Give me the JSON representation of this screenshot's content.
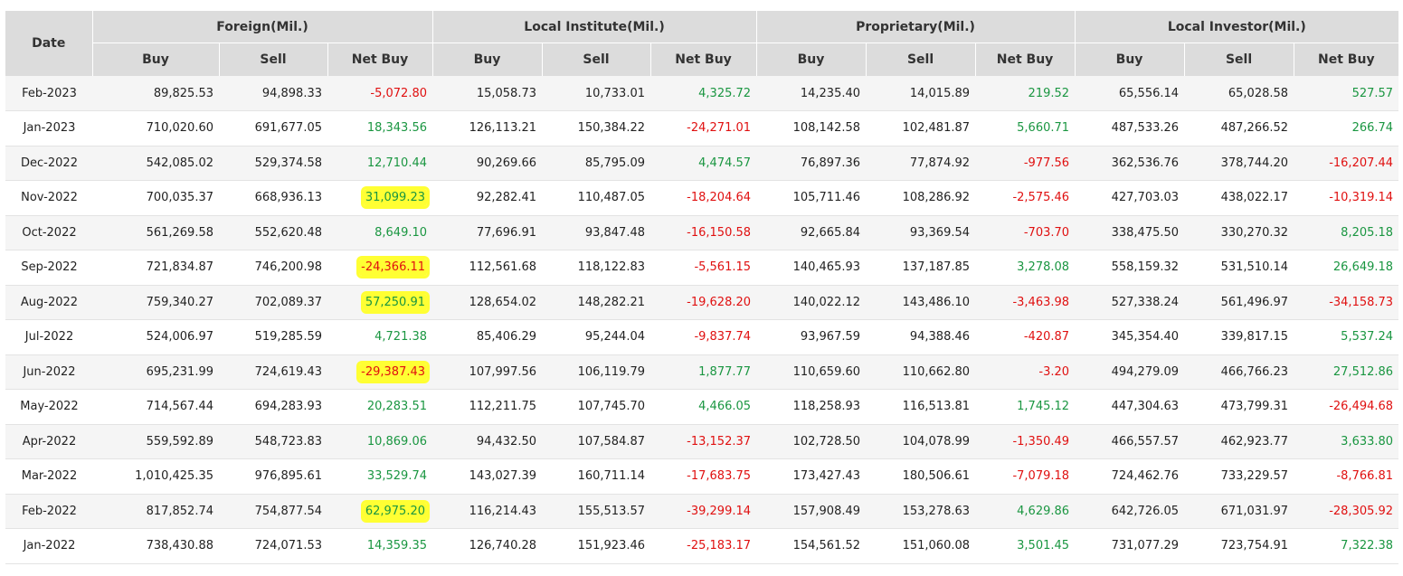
{
  "headers": {
    "date": "Date",
    "groups": [
      "Foreign(Mil.)",
      "Local Institute(Mil.)",
      "Proprietary(Mil.)",
      "Local Investor(Mil.)"
    ],
    "sub": [
      "Buy",
      "Sell",
      "Net Buy"
    ]
  },
  "colors": {
    "positive": "#1a9641",
    "negative": "#e01010",
    "highlight": "#ffff33",
    "header_bg": "#dcdcdc"
  },
  "rows": [
    {
      "date": "Feb-2023",
      "hl": false,
      "values": [
        "89,825.53",
        "94,898.33",
        "-5,072.80",
        "15,058.73",
        "10,733.01",
        "4,325.72",
        "14,235.40",
        "14,015.89",
        "219.52",
        "65,556.14",
        "65,028.58",
        "527.57"
      ]
    },
    {
      "date": "Jan-2023",
      "hl": false,
      "values": [
        "710,020.60",
        "691,677.05",
        "18,343.56",
        "126,113.21",
        "150,384.22",
        "-24,271.01",
        "108,142.58",
        "102,481.87",
        "5,660.71",
        "487,533.26",
        "487,266.52",
        "266.74"
      ]
    },
    {
      "date": "Dec-2022",
      "hl": false,
      "values": [
        "542,085.02",
        "529,374.58",
        "12,710.44",
        "90,269.66",
        "85,795.09",
        "4,474.57",
        "76,897.36",
        "77,874.92",
        "-977.56",
        "362,536.76",
        "378,744.20",
        "-16,207.44"
      ]
    },
    {
      "date": "Nov-2022",
      "hl": true,
      "values": [
        "700,035.37",
        "668,936.13",
        "31,099.23",
        "92,282.41",
        "110,487.05",
        "-18,204.64",
        "105,711.46",
        "108,286.92",
        "-2,575.46",
        "427,703.03",
        "438,022.17",
        "-10,319.14"
      ]
    },
    {
      "date": "Oct-2022",
      "hl": false,
      "values": [
        "561,269.58",
        "552,620.48",
        "8,649.10",
        "77,696.91",
        "93,847.48",
        "-16,150.58",
        "92,665.84",
        "93,369.54",
        "-703.70",
        "338,475.50",
        "330,270.32",
        "8,205.18"
      ]
    },
    {
      "date": "Sep-2022",
      "hl": true,
      "values": [
        "721,834.87",
        "746,200.98",
        "-24,366.11",
        "112,561.68",
        "118,122.83",
        "-5,561.15",
        "140,465.93",
        "137,187.85",
        "3,278.08",
        "558,159.32",
        "531,510.14",
        "26,649.18"
      ]
    },
    {
      "date": "Aug-2022",
      "hl": true,
      "values": [
        "759,340.27",
        "702,089.37",
        "57,250.91",
        "128,654.02",
        "148,282.21",
        "-19,628.20",
        "140,022.12",
        "143,486.10",
        "-3,463.98",
        "527,338.24",
        "561,496.97",
        "-34,158.73"
      ]
    },
    {
      "date": "Jul-2022",
      "hl": false,
      "values": [
        "524,006.97",
        "519,285.59",
        "4,721.38",
        "85,406.29",
        "95,244.04",
        "-9,837.74",
        "93,967.59",
        "94,388.46",
        "-420.87",
        "345,354.40",
        "339,817.15",
        "5,537.24"
      ]
    },
    {
      "date": "Jun-2022",
      "hl": true,
      "values": [
        "695,231.99",
        "724,619.43",
        "-29,387.43",
        "107,997.56",
        "106,119.79",
        "1,877.77",
        "110,659.60",
        "110,662.80",
        "-3.20",
        "494,279.09",
        "466,766.23",
        "27,512.86"
      ]
    },
    {
      "date": "May-2022",
      "hl": false,
      "values": [
        "714,567.44",
        "694,283.93",
        "20,283.51",
        "112,211.75",
        "107,745.70",
        "4,466.05",
        "118,258.93",
        "116,513.81",
        "1,745.12",
        "447,304.63",
        "473,799.31",
        "-26,494.68"
      ]
    },
    {
      "date": "Apr-2022",
      "hl": false,
      "values": [
        "559,592.89",
        "548,723.83",
        "10,869.06",
        "94,432.50",
        "107,584.87",
        "-13,152.37",
        "102,728.50",
        "104,078.99",
        "-1,350.49",
        "466,557.57",
        "462,923.77",
        "3,633.80"
      ]
    },
    {
      "date": "Mar-2022",
      "hl": false,
      "values": [
        "1,010,425.35",
        "976,895.61",
        "33,529.74",
        "143,027.39",
        "160,711.14",
        "-17,683.75",
        "173,427.43",
        "180,506.61",
        "-7,079.18",
        "724,462.76",
        "733,229.57",
        "-8,766.81"
      ]
    },
    {
      "date": "Feb-2022",
      "hl": true,
      "values": [
        "817,852.74",
        "754,877.54",
        "62,975.20",
        "116,214.43",
        "155,513.57",
        "-39,299.14",
        "157,908.49",
        "153,278.63",
        "4,629.86",
        "642,726.05",
        "671,031.97",
        "-28,305.92"
      ]
    },
    {
      "date": "Jan-2022",
      "hl": false,
      "values": [
        "738,430.88",
        "724,071.53",
        "14,359.35",
        "126,740.28",
        "151,923.46",
        "-25,183.17",
        "154,561.52",
        "151,060.08",
        "3,501.45",
        "731,077.29",
        "723,754.91",
        "7,322.38"
      ]
    }
  ]
}
